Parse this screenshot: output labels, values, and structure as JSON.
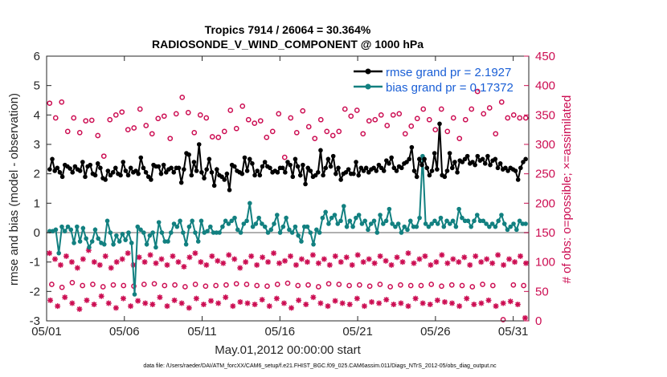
{
  "chart_data": {
    "type": "line",
    "title": "Tropics 7914 / 26064 = 30.364%",
    "subtitle": "RADIOSONDE_V_WIND_COMPONENT @ 1000 hPa",
    "xlabel": "May.01,2012 00:00:00 start",
    "ylabel_left": "rmse and bias (model - observation)",
    "ylabel_right": "# of obs: o=possible; ×=assimilated",
    "footer": "data file: /Users/raeder/DAI/ATM_forcXX/CAM6_setup/f.e21.FHIST_BGC.f09_025.CAM6assim.011/Diags_NTrS_2012-05/obs_diag_output.nc",
    "xlim": [
      1,
      32
    ],
    "ylim_left": [
      -3,
      6
    ],
    "ylim_right": [
      0,
      450
    ],
    "x_ticks": [
      1,
      6,
      11,
      16,
      21,
      26,
      31
    ],
    "x_tick_labels": [
      "05/01",
      "05/06",
      "05/11",
      "05/16",
      "05/21",
      "05/26",
      "05/31"
    ],
    "y_left_ticks": [
      "-3",
      "-2",
      "-1",
      "0",
      "1",
      "2",
      "3",
      "4",
      "5",
      "6"
    ],
    "y_right_ticks": [
      "0",
      "50",
      "100",
      "150",
      "200",
      "250",
      "300",
      "350",
      "400",
      "450"
    ],
    "colors": {
      "rmse": "#000000",
      "bias": "#128080",
      "counts": "#cc0d52",
      "legend_text": "#1a5fd6",
      "zero_line": "#b0b0b0"
    },
    "legend": {
      "position": "top-right",
      "entries": [
        "rmse grand pr = 2.1927",
        "bias grand pr = 0.17372"
      ]
    },
    "series": [
      {
        "name": "rmse grand pr = 2.1927",
        "axis": "left",
        "values": [
          2.15,
          2.5,
          2.1,
          2.2,
          2.05,
          1.9,
          2.3,
          2.25,
          2.18,
          2.05,
          2.25,
          2.15,
          2.1,
          2.4,
          1.9,
          2.25,
          2.3,
          2.0,
          1.95,
          2.35,
          2.2,
          1.85,
          1.8,
          2.1,
          1.95,
          2.05,
          2.2,
          2.0,
          1.95,
          2.4,
          2.1,
          1.95,
          2.2,
          2.05,
          2.1,
          2.0,
          2.55,
          2.2,
          2.05,
          1.9,
          1.8,
          2.3,
          2.25,
          2.25,
          2.0,
          2.3,
          2.05,
          2.15,
          2.2,
          2.05,
          2.2,
          2.2,
          1.7,
          2.15,
          2.7,
          2.65,
          1.95,
          2.4,
          2.1,
          3.0,
          2.05,
          1.85,
          2.15,
          2.5,
          2.05,
          1.6,
          2.15,
          1.95,
          1.9,
          1.8,
          2.0,
          1.45,
          2.3,
          2.25,
          2.1,
          2.05,
          2.0,
          2.55,
          2.1,
          2.5,
          2.35,
          1.95,
          2.1,
          1.95,
          2.25,
          2.4,
          2.25,
          2.2,
          2.05,
          2.1,
          2.05,
          2.2,
          2.2,
          2.05,
          2.4,
          2.3,
          1.9,
          2.5,
          2.25,
          1.95,
          2.3,
          1.65,
          2.2,
          2.1,
          1.9,
          1.95,
          2.05,
          2.8,
          1.95,
          2.2,
          2.5,
          2.25,
          2.6,
          2.0,
          2.2,
          1.8,
          2.0,
          2.05,
          2.15,
          2.0,
          2.0,
          2.4,
          1.95,
          2.2,
          2.1,
          2.2,
          2.05,
          2.15,
          2.2,
          2.1,
          2.3,
          2.2,
          2.1,
          2.45,
          2.35,
          2.55,
          2.2,
          2.1,
          2.25,
          2.2,
          2.35,
          2.4,
          2.5,
          2.9,
          2.1,
          1.9,
          2.5,
          2.3,
          2.5,
          2.2,
          1.95,
          2.1,
          2.7,
          2.15,
          3.7,
          1.95,
          1.9,
          2.1,
          2.7,
          2.2,
          2.4,
          2.05,
          2.45,
          2.4,
          2.5,
          2.6,
          2.35,
          2.4,
          2.3,
          2.6,
          2.45,
          2.5,
          2.35,
          2.6,
          2.3,
          2.45,
          2.5,
          2.2,
          2.35,
          2.15,
          2.2,
          2.1,
          2.2,
          2.15,
          2.1,
          1.8,
          2.2,
          2.4,
          2.5
        ]
      },
      {
        "name": "bias grand pr = 0.17372",
        "axis": "left",
        "values": [
          0.05,
          0.05,
          0.1,
          -0.7,
          0.2,
          0.05,
          0.2,
          0.1,
          -0.35,
          0.2,
          -0.3,
          0.15,
          -0.2,
          -0.5,
          -0.3,
          0.1,
          -0.2,
          -0.35,
          -0.4,
          0.4,
          0.0,
          -0.4,
          -0.1,
          -0.3,
          -0.05,
          -0.25,
          0.0,
          -0.35,
          -2.1,
          0.2,
          0.1,
          0.0,
          -0.4,
          -0.1,
          0.0,
          -0.5,
          0.35,
          0.0,
          -0.3,
          -0.3,
          0.0,
          0.3,
          0.2,
          0.4,
          0.0,
          -0.4,
          0.2,
          0.4,
          0.0,
          -0.3,
          0.4,
          0.0,
          0.05,
          0.2,
          0.0,
          0.0,
          0.0,
          0.2,
          0.4,
          0.3,
          0.4,
          0.5,
          0.1,
          0.0,
          0.3,
          0.4,
          1.0,
          0.2,
          0.3,
          0.5,
          0.3,
          0.2,
          0.0,
          0.1,
          0.3,
          0.6,
          0.0,
          0.2,
          0.5,
          0.1,
          0.0,
          0.2,
          -0.1,
          -0.3,
          0.2,
          0.2,
          0.0,
          -0.4,
          0.1,
          0.0,
          0.5,
          0.7,
          0.3,
          0.5,
          0.6,
          0.3,
          0.4,
          0.9,
          0.2,
          0.4,
          0.2,
          0.5,
          0.6,
          0.3,
          0.4,
          0.1,
          0.3,
          0.4,
          0.0,
          0.6,
          0.3,
          0.4,
          0.8,
          0.3,
          0.2,
          0.3,
          0.0,
          0.2,
          0.1,
          0.4,
          0.2,
          0.2,
          0.5,
          2.6,
          0.3,
          0.2,
          0.3,
          0.4,
          0.3,
          0.5,
          0.2,
          0.4,
          0.3,
          0.4,
          0.2,
          0.8,
          0.5,
          0.4,
          0.4,
          0.2,
          0.4,
          0.6,
          0.4,
          0.4,
          0.3,
          0.2,
          0.3,
          0.2,
          0.4,
          0.6,
          0.3,
          0.1,
          0.2,
          0.3,
          0.1,
          0.4,
          0.3,
          0.3
        ]
      },
      {
        "name": "possible",
        "axis": "right",
        "marker": "o",
        "values": [
          370,
          345,
          372,
          322,
          345,
          320,
          340,
          341,
          315,
          280,
          342,
          350,
          355,
          325,
          328,
          360,
          332,
          318,
          344,
          348,
          310,
          352,
          380,
          354,
          320,
          350,
          345,
          313,
          312,
          322,
          358,
          327,
          365,
          342,
          336,
          340,
          312,
          322,
          352,
          278,
          345,
          320,
          357,
          330,
          310,
          342,
          322,
          315,
          322,
          360,
          348,
          358,
          318,
          340,
          342,
          350,
          332,
          350,
          352,
          318,
          331,
          344,
          360,
          342,
          325,
          360,
          322,
          345,
          310,
          342,
          360,
          390,
          352,
          362,
          318,
          372,
          345,
          350,
          345,
          345
        ]
      },
      {
        "name": "possible_low",
        "axis": "right",
        "marker": "o",
        "values": [
          62,
          57,
          65,
          60,
          62,
          58,
          61,
          60,
          59,
          62,
          63,
          60,
          61,
          58,
          62,
          59,
          60,
          61,
          63,
          62,
          60,
          59,
          62,
          64,
          60,
          61,
          58,
          63,
          62,
          60,
          61,
          59,
          62,
          58,
          61,
          60,
          60,
          62,
          59,
          61,
          60,
          58,
          62,
          60,
          2,
          61,
          60
        ]
      },
      {
        "name": "assimilated",
        "axis": "right",
        "marker": "x",
        "values": [
          115,
          105,
          95,
          110,
          100,
          90,
          105,
          120,
          100,
          95,
          110,
          90,
          100,
          105,
          115,
          95,
          108,
          100,
          112,
          98,
          105,
          95,
          110,
          100,
          92,
          108,
          115,
          100,
          95,
          110,
          102,
          98,
          112,
          105,
          90,
          100,
          110,
          95,
          108,
          100,
          115,
          98,
          102,
          110,
          95,
          105,
          100,
          112,
          98,
          105,
          95,
          110,
          100,
          108,
          95,
          112,
          100,
          105,
          98,
          110,
          102,
          95,
          108,
          100,
          115,
          98,
          105,
          110,
          95,
          100,
          112,
          98,
          105,
          100,
          108,
          95,
          110,
          100,
          105,
          98,
          112,
          95,
          105,
          100,
          110,
          98
        ]
      },
      {
        "name": "assimilated_low",
        "axis": "right",
        "marker": "x",
        "values": [
          35,
          25,
          40,
          30,
          20,
          35,
          28,
          42,
          30,
          22,
          38,
          25,
          34,
          30,
          28,
          40,
          25,
          35,
          30,
          22,
          38,
          28,
          34,
          30,
          40,
          25,
          32,
          30,
          28,
          36,
          25,
          38,
          30,
          22,
          35,
          28,
          40,
          30,
          25,
          34,
          30,
          28,
          38,
          25,
          32,
          30,
          36,
          28,
          30,
          25,
          38,
          30,
          28,
          35,
          32,
          30,
          25,
          38,
          28,
          30,
          35,
          25,
          30,
          33,
          28,
          5
        ]
      }
    ]
  }
}
